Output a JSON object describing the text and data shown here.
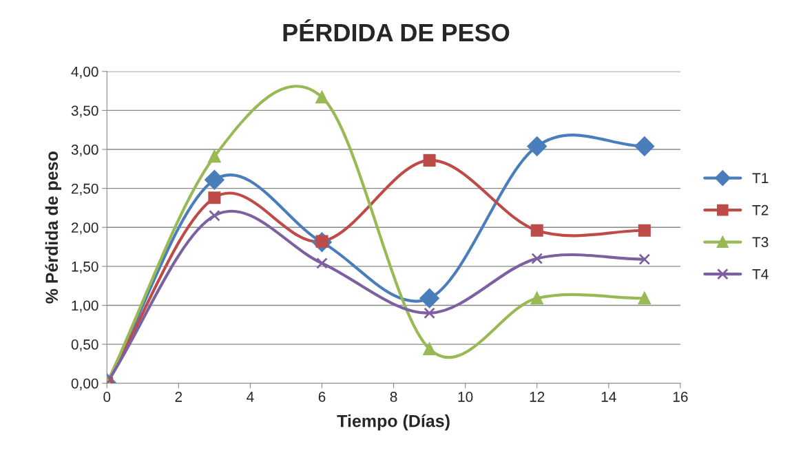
{
  "chart_data": {
    "type": "line",
    "title": "PÉRDIDA DE PESO",
    "xlabel": "Tiempo (Días)",
    "ylabel": "% Pérdida de peso",
    "x": [
      0,
      3,
      6,
      9,
      12,
      15
    ],
    "series": [
      {
        "name": "T1",
        "color": "#4a7ebb",
        "marker": "diamond",
        "values": [
          0,
          2.61,
          1.81,
          1.09,
          3.04,
          3.04
        ]
      },
      {
        "name": "T2",
        "color": "#be4b48",
        "marker": "square",
        "values": [
          0,
          2.38,
          1.82,
          2.86,
          1.96,
          1.96
        ]
      },
      {
        "name": "T3",
        "color": "#98b954",
        "marker": "triangle",
        "values": [
          0,
          2.91,
          3.67,
          0.44,
          1.09,
          1.09
        ]
      },
      {
        "name": "T4",
        "color": "#7d60a0",
        "marker": "cross",
        "values": [
          0,
          2.15,
          1.54,
          0.9,
          1.6,
          1.59
        ]
      }
    ],
    "xlim": [
      0,
      16
    ],
    "xticks": [
      0,
      2,
      4,
      6,
      8,
      10,
      12,
      14,
      16
    ],
    "ylim": [
      0,
      4
    ],
    "yticks": [
      {
        "value": 0,
        "label": "0,00"
      },
      {
        "value": 0.5,
        "label": "0,50"
      },
      {
        "value": 1,
        "label": "1,00"
      },
      {
        "value": 1.5,
        "label": "1,50"
      },
      {
        "value": 2,
        "label": "2,00"
      },
      {
        "value": 2.5,
        "label": "2,50"
      },
      {
        "value": 3,
        "label": "3,00"
      },
      {
        "value": 3.5,
        "label": "3,50"
      },
      {
        "value": 4,
        "label": "4,00"
      }
    ],
    "grid": "y",
    "legend": "right"
  }
}
